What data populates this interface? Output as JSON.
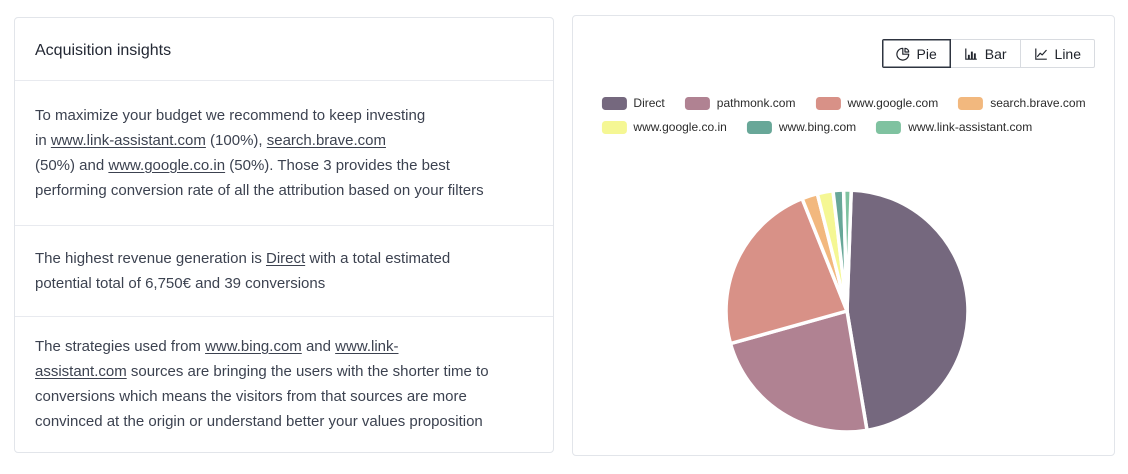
{
  "insights_card": {
    "title": "Acquisition insights",
    "paragraphs": [
      {
        "segments": [
          {
            "text": "To maximize your budget we recommend to keep investing\nin "
          },
          {
            "link": "www.link-assistant.com"
          },
          {
            "text": " (100%), "
          },
          {
            "link": "search.brave.com"
          },
          {
            "text": "\n(50%) and "
          },
          {
            "link": "www.google.co.in"
          },
          {
            "text": " (50%). Those 3 provides the best\nperforming conversion rate of all the attribution based on your filters"
          }
        ]
      },
      {
        "segments": [
          {
            "text": "The highest revenue generation is "
          },
          {
            "link": "Direct"
          },
          {
            "text": " with a total estimated\npotential total of 6,750€ and 39 conversions"
          }
        ]
      },
      {
        "segments": [
          {
            "text": "The strategies used from "
          },
          {
            "link": "www.bing.com"
          },
          {
            "text": " and "
          },
          {
            "link": "www.link-\nassistant.com"
          },
          {
            "text": " sources are bringing the users with the shorter time to\nconversions which means the visitors from that sources are more\nconvinced at the origin or understand better your values proposition"
          }
        ]
      }
    ]
  },
  "chart_card": {
    "controls": {
      "buttons": [
        {
          "label": "Pie",
          "icon": "pie-chart-icon",
          "active": true
        },
        {
          "label": "Bar",
          "icon": "bar-chart-icon",
          "active": false
        },
        {
          "label": "Line",
          "icon": "line-chart-icon",
          "active": false
        }
      ]
    }
  },
  "chart_data": {
    "type": "pie",
    "title": "",
    "legend_position": "top",
    "start_angle_deg": 2,
    "series": [
      {
        "name": "Direct",
        "percent": 46.8,
        "color": "#75687e"
      },
      {
        "name": "pathmonk.com",
        "percent": 23.3,
        "color": "#b08292"
      },
      {
        "name": "www.google.com",
        "percent": 23.3,
        "color": "#d89187"
      },
      {
        "name": "search.brave.com",
        "percent": 2.1,
        "color": "#f2b87e"
      },
      {
        "name": "www.google.co.in",
        "percent": 2.1,
        "color": "#f5f794"
      },
      {
        "name": "www.bing.com",
        "percent": 1.4,
        "color": "#68a798"
      },
      {
        "name": "www.link-assistant.com",
        "percent": 1.0,
        "color": "#7fc2a0"
      }
    ],
    "legend_rows": [
      [
        0,
        1,
        2,
        3
      ],
      [
        4,
        5,
        6
      ]
    ]
  }
}
